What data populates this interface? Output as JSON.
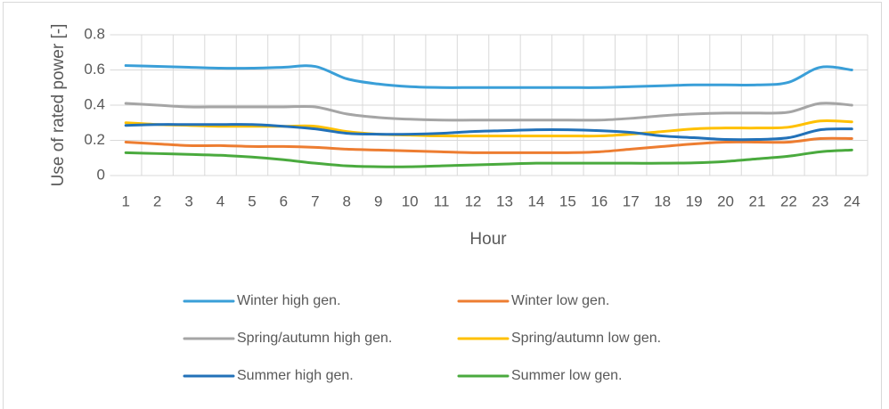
{
  "chart_data": {
    "type": "line",
    "y_label": "Use of rated power [-]",
    "x_label": "Hour",
    "categories": [
      "1",
      "2",
      "3",
      "4",
      "5",
      "6",
      "7",
      "8",
      "9",
      "10",
      "11",
      "12",
      "13",
      "14",
      "15",
      "16",
      "17",
      "18",
      "19",
      "20",
      "21",
      "22",
      "23",
      "24"
    ],
    "ylim": [
      0,
      0.8
    ],
    "yticks": [
      0,
      0.2,
      0.4,
      0.6,
      0.8
    ],
    "grid": true,
    "smooth": true,
    "legend": "bottom",
    "series": [
      {
        "name": "Winter high gen.",
        "color": "#3a9fd8",
        "values": [
          0.625,
          0.62,
          0.615,
          0.61,
          0.61,
          0.615,
          0.62,
          0.55,
          0.52,
          0.505,
          0.5,
          0.5,
          0.5,
          0.5,
          0.5,
          0.5,
          0.505,
          0.51,
          0.515,
          0.515,
          0.515,
          0.53,
          0.615,
          0.6
        ]
      },
      {
        "name": "Winter low gen.",
        "color": "#ed7d31",
        "values": [
          0.19,
          0.18,
          0.17,
          0.17,
          0.165,
          0.165,
          0.16,
          0.15,
          0.145,
          0.14,
          0.135,
          0.13,
          0.13,
          0.13,
          0.13,
          0.135,
          0.15,
          0.165,
          0.18,
          0.19,
          0.19,
          0.19,
          0.21,
          0.21
        ]
      },
      {
        "name": "Spring/autumn high gen.",
        "color": "#a5a5a5",
        "values": [
          0.41,
          0.4,
          0.39,
          0.39,
          0.39,
          0.39,
          0.39,
          0.35,
          0.33,
          0.32,
          0.315,
          0.315,
          0.315,
          0.315,
          0.315,
          0.315,
          0.325,
          0.34,
          0.35,
          0.355,
          0.355,
          0.36,
          0.41,
          0.4
        ]
      },
      {
        "name": "Spring/autumn low gen.",
        "color": "#ffc000",
        "values": [
          0.3,
          0.29,
          0.285,
          0.28,
          0.28,
          0.28,
          0.28,
          0.25,
          0.235,
          0.23,
          0.225,
          0.225,
          0.225,
          0.225,
          0.225,
          0.225,
          0.235,
          0.25,
          0.265,
          0.27,
          0.27,
          0.275,
          0.31,
          0.305
        ]
      },
      {
        "name": "Summer high gen.",
        "color": "#2271b8",
        "values": [
          0.285,
          0.29,
          0.29,
          0.29,
          0.29,
          0.28,
          0.265,
          0.24,
          0.235,
          0.235,
          0.24,
          0.25,
          0.255,
          0.26,
          0.26,
          0.255,
          0.245,
          0.225,
          0.215,
          0.205,
          0.205,
          0.215,
          0.26,
          0.265
        ]
      },
      {
        "name": "Summer low gen.",
        "color": "#4aaa3e",
        "values": [
          0.13,
          0.125,
          0.12,
          0.115,
          0.105,
          0.09,
          0.07,
          0.055,
          0.05,
          0.05,
          0.055,
          0.06,
          0.065,
          0.07,
          0.07,
          0.07,
          0.07,
          0.07,
          0.072,
          0.08,
          0.095,
          0.11,
          0.135,
          0.145
        ]
      }
    ]
  }
}
